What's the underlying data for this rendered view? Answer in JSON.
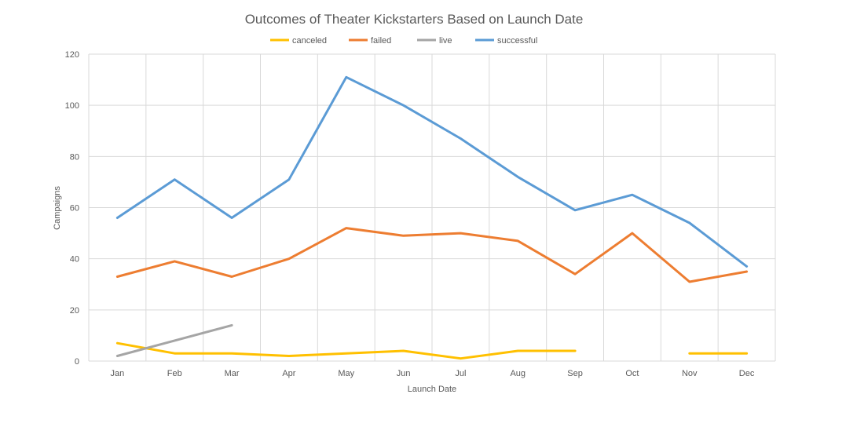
{
  "chart_data": {
    "type": "line",
    "title": "Outcomes of Theater Kickstarters Based on Launch Date",
    "xlabel": "Launch Date",
    "ylabel": "Campaigns",
    "categories": [
      "Jan",
      "Feb",
      "Mar",
      "Apr",
      "May",
      "Jun",
      "Jul",
      "Aug",
      "Sep",
      "Oct",
      "Nov",
      "Dec"
    ],
    "ylim": [
      0,
      120
    ],
    "yticks": [
      0,
      20,
      40,
      60,
      80,
      100,
      120
    ],
    "grid": true,
    "legend_position": "top",
    "series": [
      {
        "name": "canceled",
        "color": "#FFC000",
        "values": [
          7,
          3,
          3,
          2,
          3,
          4,
          1,
          4,
          4,
          null,
          3,
          3
        ]
      },
      {
        "name": "failed",
        "color": "#ED7D31",
        "values": [
          33,
          39,
          33,
          40,
          52,
          49,
          50,
          47,
          34,
          50,
          31,
          35
        ]
      },
      {
        "name": "live",
        "color": "#A5A5A5",
        "values": [
          2,
          8,
          14,
          null,
          null,
          null,
          null,
          null,
          null,
          null,
          null,
          null
        ]
      },
      {
        "name": "successful",
        "color": "#5B9BD5",
        "values": [
          56,
          71,
          56,
          71,
          111,
          100,
          87,
          72,
          59,
          65,
          54,
          37
        ]
      }
    ]
  }
}
